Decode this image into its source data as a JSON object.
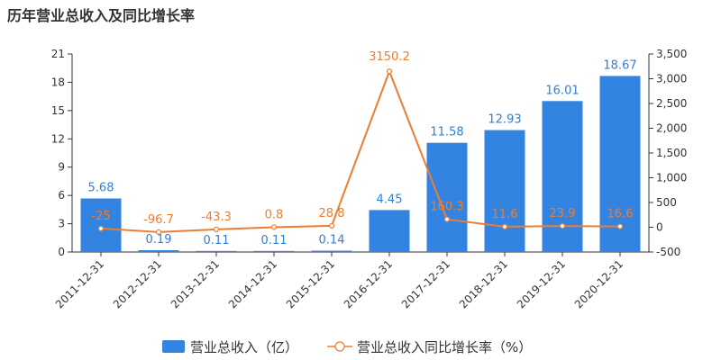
{
  "chart_data": {
    "type": "bar",
    "title": "历年营业总收入及同比增长率",
    "categories": [
      "2011-12-31",
      "2012-12-31",
      "2013-12-31",
      "2014-12-31",
      "2015-12-31",
      "2016-12-31",
      "2017-12-31",
      "2018-12-31",
      "2019-12-31",
      "2020-12-31"
    ],
    "series": [
      {
        "name": "营业总收入（亿）",
        "type": "bar",
        "axis": "left",
        "color": "#3384e1",
        "values": [
          5.68,
          0.19,
          0.11,
          0.11,
          0.14,
          4.45,
          11.58,
          12.93,
          16.01,
          18.67
        ],
        "labels": [
          "5.68",
          "0.19",
          "0.11",
          "0.11",
          "0.14",
          "4.45",
          "11.58",
          "12.93",
          "16.01",
          "18.67"
        ]
      },
      {
        "name": "营业总收入同比增长率（%）",
        "type": "line",
        "axis": "right",
        "color": "#ed7d31",
        "values": [
          -25,
          -96.7,
          -43.3,
          0.8,
          28.8,
          3150.2,
          160.3,
          11.6,
          23.9,
          16.6
        ],
        "labels": [
          "-25",
          "-96.7",
          "-43.3",
          "0.8",
          "28.8",
          "3150.2",
          "160.3",
          "11.6",
          "23.9",
          "16.6"
        ]
      }
    ],
    "ylim_left": [
      0,
      21
    ],
    "yticks_left": [
      0,
      3,
      6,
      9,
      12,
      15,
      18,
      21
    ],
    "yticks_left_labels": [
      "0",
      "3",
      "6",
      "9",
      "12",
      "15",
      "18",
      "21"
    ],
    "ylim_right": [
      -500,
      3500
    ],
    "yticks_right": [
      -500,
      0,
      500,
      1000,
      1500,
      2000,
      2500,
      3000,
      3500
    ],
    "yticks_right_labels": [
      "-500",
      "0",
      "500",
      "1,000",
      "1,500",
      "2,000",
      "2,500",
      "3,000",
      "3,500"
    ],
    "grid": false,
    "legend_position": "bottom-center"
  }
}
